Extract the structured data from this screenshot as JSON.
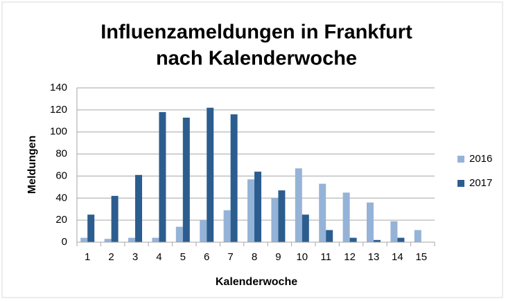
{
  "chart_data": {
    "type": "bar",
    "title": [
      "Influenzameldungen  in Frankfurt",
      "nach Kalenderwoche"
    ],
    "x_label": "Kalenderwoche",
    "y_label": "Meldungen",
    "categories": [
      "1",
      "2",
      "3",
      "4",
      "5",
      "6",
      "7",
      "8",
      "9",
      "10",
      "11",
      "12",
      "13",
      "14",
      "15"
    ],
    "series": [
      {
        "name": "2016",
        "color": "#95b3d7",
        "values": [
          4,
          3,
          4,
          4,
          14,
          20,
          29,
          57,
          40,
          67,
          53,
          45,
          36,
          19,
          11
        ]
      },
      {
        "name": "2017",
        "color": "#2c5d8f",
        "values": [
          25,
          42,
          61,
          118,
          113,
          122,
          116,
          64,
          47,
          25,
          11,
          4,
          2,
          4,
          null
        ]
      }
    ],
    "ylim": [
      0,
      140
    ],
    "yticks": [
      0,
      20,
      40,
      60,
      80,
      100,
      120,
      140
    ],
    "grid": true,
    "legend": "right"
  }
}
